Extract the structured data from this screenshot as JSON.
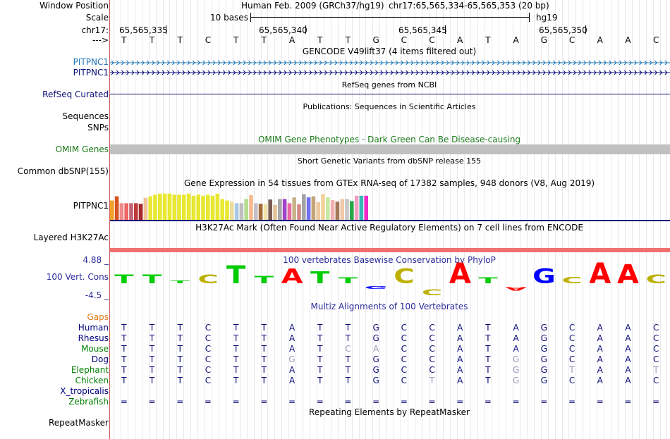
{
  "header": {
    "window_label": "Window Position",
    "assembly": "Human Feb. 2009 (GRCh37/hg19)",
    "position": "chr17:65,565,334-65,565,353 (20 bp)",
    "scale_label": "Scale",
    "scale_text": "10 bases",
    "scale_db": "hg19",
    "chrom_label": "chr17:",
    "coords": [
      "65,565,335",
      "65,565,340",
      "65,565,345",
      "65,565,350"
    ],
    "strand_label": "--->",
    "bases": [
      "T",
      "T",
      "T",
      "C",
      "T",
      "T",
      "A",
      "T",
      "T",
      "G",
      "C",
      "C",
      "A",
      "T",
      "A",
      "G",
      "C",
      "A",
      "A",
      "C"
    ]
  },
  "tracks": {
    "gencode": {
      "title": "GENCODE V49lift37 (4 items filtered out)",
      "items": [
        "PITPNC1",
        "PITPNC1"
      ]
    },
    "refseq": {
      "title": "RefSeq genes from NCBI",
      "label": "RefSeq Curated"
    },
    "publications": {
      "title": "Publications: Sequences in Scientific Articles",
      "labels": [
        "Sequences",
        "SNPs"
      ]
    },
    "omim": {
      "title": "OMIM Gene Phenotypes - Dark Green Can Be Disease-causing",
      "label": "OMIM Genes"
    },
    "dbsnp": {
      "title": "Short Genetic Variants from dbSNP release 155",
      "label": "Common dbSNP(155)"
    },
    "gtex": {
      "title": "Gene Expression in 54 tissues from GTEx RNA-seq of 17382 samples, 948 donors (V8, Aug 2019)",
      "label": "PITPNC1",
      "levels": [
        0.72,
        0.88,
        0.62,
        0.62,
        0.62,
        0.62,
        0.6,
        0.82,
        0.88,
        0.94,
        0.98,
        0.98,
        0.98,
        0.94,
        0.94,
        0.94,
        0.98,
        0.9,
        0.94,
        0.9,
        0.94,
        0.9,
        0.98,
        0.78,
        0.72,
        0.68,
        0.62,
        0.62,
        0.78,
        0.92,
        0.62,
        0.6,
        0.6,
        0.76,
        0.56,
        0.78,
        0.78,
        0.62,
        0.84,
        0.58,
        0.96,
        0.84,
        0.88,
        0.66,
        0.96,
        0.84,
        0.74,
        0.68,
        0.78,
        0.78,
        0.7,
        0.9,
        0.9,
        0.9
      ],
      "colors": [
        "#f2a227",
        "#d6541e",
        "#ee8a8a",
        "#ed6565",
        "#c06575",
        "#bf3a3a",
        "#a52a2a",
        "#f2c298",
        "#e8e832",
        "#e8e832",
        "#e8e832",
        "#e8e832",
        "#e8e832",
        "#e8e832",
        "#e8e832",
        "#e8e832",
        "#e8e832",
        "#e8e832",
        "#e8e832",
        "#e8e832",
        "#e8e832",
        "#e8e832",
        "#e8e832",
        "#e8e832",
        "#e8e832",
        "#ecdc9c",
        "#a8c8e8",
        "#bfbfbf",
        "#b2de8d",
        "#f6b88e",
        "#c6bfc6",
        "#a26a3a",
        "#f2e2a8",
        "#7a5a52",
        "#e4c298",
        "#a7a7a7",
        "#a045c8",
        "#e868a0",
        "#c8b48a",
        "#d28c8c",
        "#a4a4a4",
        "#7070f0",
        "#c4a478",
        "#ecc8a0",
        "#f2d298",
        "#c8e8a0",
        "#f0b0b0",
        "#a47858",
        "#f2c8a8",
        "#c8c8c8",
        "#28a848",
        "#f0a0c0",
        "#38b8b8",
        "#f028c8"
      ]
    },
    "h3k27ac": {
      "title": "H3K27Ac Mark (Often Found Near Active Regulatory Elements) on 7 cell lines from ENCODE",
      "label": "Layered H3K27Ac"
    },
    "cons": {
      "title": "100 vertebrates Basewise Conservation by PhyloP",
      "label": "100 Vert. Cons",
      "ymax": "4.88 _",
      "ymin": "-4.5 _",
      "scores": [
        1.2,
        1.2,
        0.4,
        1.2,
        2.4,
        1.0,
        2.0,
        1.6,
        0.8,
        -0.4,
        2.0,
        -0.8,
        2.8,
        0.8,
        -0.5,
        2.0,
        0.9,
        2.8,
        2.6,
        1.2
      ]
    },
    "multiz": {
      "title": "Multiz Alignments of 100 Vertebrates",
      "gaps_label": "Gaps",
      "species": [
        {
          "name": "Human",
          "color": "#000080",
          "seq": [
            "T",
            "T",
            "T",
            "C",
            "T",
            "T",
            "A",
            "T",
            "T",
            "G",
            "C",
            "C",
            "A",
            "T",
            "A",
            "G",
            "C",
            "A",
            "A",
            "C"
          ],
          "dim": []
        },
        {
          "name": "Rhesus",
          "color": "#000080",
          "seq": [
            "T",
            "T",
            "T",
            "C",
            "T",
            "T",
            "A",
            "T",
            "T",
            "G",
            "C",
            "C",
            "A",
            "T",
            "A",
            "G",
            "C",
            "A",
            "A",
            "C"
          ],
          "dim": []
        },
        {
          "name": "Mouse",
          "color": "#008000",
          "seq": [
            "T",
            "T",
            "T",
            "C",
            "T",
            "T",
            "A",
            "T",
            "C",
            "A",
            "C",
            "C",
            "A",
            "T",
            "A",
            "G",
            "C",
            "A",
            "A",
            "C"
          ],
          "dim": [
            8,
            9
          ]
        },
        {
          "name": "Dog",
          "color": "#000080",
          "seq": [
            "T",
            "T",
            "T",
            "C",
            "T",
            "T",
            "G",
            "T",
            "T",
            "G",
            "C",
            "C",
            "A",
            "T",
            "G",
            "G",
            "C",
            "A",
            "A",
            "C"
          ],
          "dim": [
            6,
            14
          ]
        },
        {
          "name": "Elephant",
          "color": "#008000",
          "seq": [
            "T",
            "T",
            "T",
            "C",
            "T",
            "T",
            "A",
            "T",
            "T",
            "G",
            "C",
            "C",
            "A",
            "T",
            "G",
            "G",
            "T",
            "A",
            "A",
            "T"
          ],
          "dim": [
            14,
            16,
            19
          ]
        },
        {
          "name": "Chicken",
          "color": "#008000",
          "seq": [
            "T",
            "T",
            "T",
            "C",
            "T",
            "T",
            "A",
            "T",
            "T",
            "G",
            "C",
            "T",
            "A",
            "T",
            "G",
            "G",
            "C",
            "A",
            "A",
            "C"
          ],
          "dim": [
            11,
            14
          ]
        },
        {
          "name": "X_tropicalis",
          "color": "#000080",
          "seq": [],
          "dim": []
        },
        {
          "name": "Zebrafish",
          "color": "#008000",
          "seq": [
            "=",
            "=",
            "=",
            "=",
            "=",
            "=",
            "=",
            "=",
            "=",
            "=",
            "=",
            "=",
            "=",
            "=",
            "=",
            "=",
            "=",
            "=",
            "=",
            "="
          ],
          "dim": []
        }
      ]
    },
    "rmsk": {
      "title": "Repeating Elements by RepeatMasker",
      "label": "RepeatMasker"
    }
  },
  "colors": {
    "gencode_blue": "#1f77b4",
    "navy": "#0c0c78",
    "omim_green": "#1a7a1a",
    "h3k27ac_red": "#f07070",
    "base_A": "#ff0000",
    "base_C": "#bdb000",
    "base_G": "#0000ff",
    "base_T": "#00cc00"
  }
}
